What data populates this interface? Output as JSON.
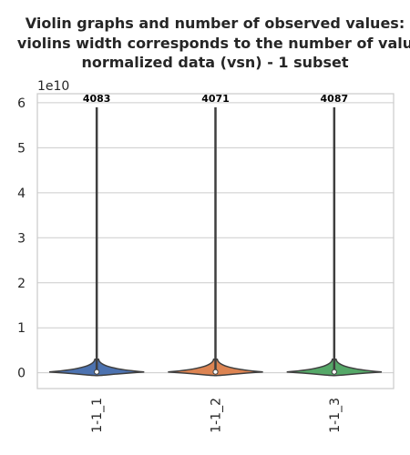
{
  "chart_data": {
    "type": "violin",
    "title_lines": [
      "Violin graphs and number of observed values:",
      "violins width corresponds to the number of valu",
      "normalized data (vsn) - 1 subset"
    ],
    "xlabel": "",
    "ylabel": "",
    "y_offset_label": "1e10",
    "y_scale": 10000000000,
    "ylim": [
      -0.35,
      6.2
    ],
    "yticks": [
      0,
      1,
      2,
      3,
      4,
      5,
      6
    ],
    "grid": true,
    "categories": [
      "1-1_1",
      "1-1_2",
      "1-1_3"
    ],
    "counts": [
      "4083",
      "4071",
      "4087"
    ],
    "colors": [
      "#4c72b0",
      "#dd8452",
      "#55a868"
    ],
    "median_values": [
      0.02,
      0.02,
      0.02
    ],
    "max_values": [
      5.9,
      5.9,
      5.9
    ]
  }
}
